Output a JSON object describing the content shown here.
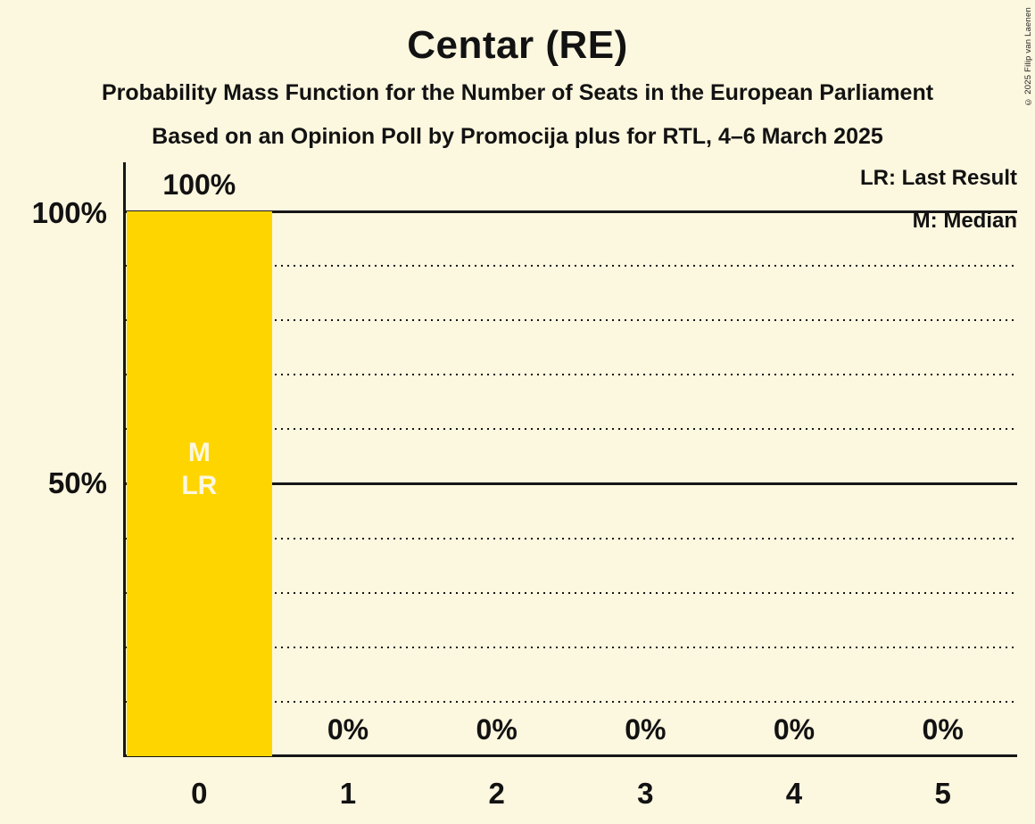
{
  "title": "Centar (RE)",
  "subtitle1": "Probability Mass Function for the Number of Seats in the European Parliament",
  "subtitle2": "Based on an Opinion Poll by Promocija plus for RTL, 4–6 March 2025",
  "copyright": "© 2025 Filip van Laenen",
  "colors": {
    "background": "#FCF7DF",
    "bar": "#FFD500",
    "text": "#121212",
    "line": "#161616",
    "bar_marker_text": "#FCF7DF"
  },
  "chart_data": {
    "type": "bar",
    "title": "Centar (RE)",
    "categories": [
      "0",
      "1",
      "2",
      "3",
      "4",
      "5"
    ],
    "values": [
      100,
      0,
      0,
      0,
      0,
      0
    ],
    "value_labels": [
      "100%",
      "0%",
      "0%",
      "0%",
      "0%",
      "0%"
    ],
    "bar_markers": [
      [
        "M",
        "LR"
      ],
      [],
      [],
      [],
      [],
      []
    ],
    "ylim": [
      0,
      100
    ],
    "y_ticks": [
      {
        "value": 100,
        "label": "100%"
      },
      {
        "value": 50,
        "label": "50%"
      }
    ],
    "gridlines_solid": [
      100,
      50
    ],
    "gridlines_dotted": [
      90,
      80,
      70,
      60,
      40,
      30,
      20,
      10
    ],
    "legend": [
      "LR: Last Result",
      "M: Median"
    ],
    "legend_position": "top-right",
    "grid": true,
    "xlabel": "",
    "ylabel": ""
  }
}
